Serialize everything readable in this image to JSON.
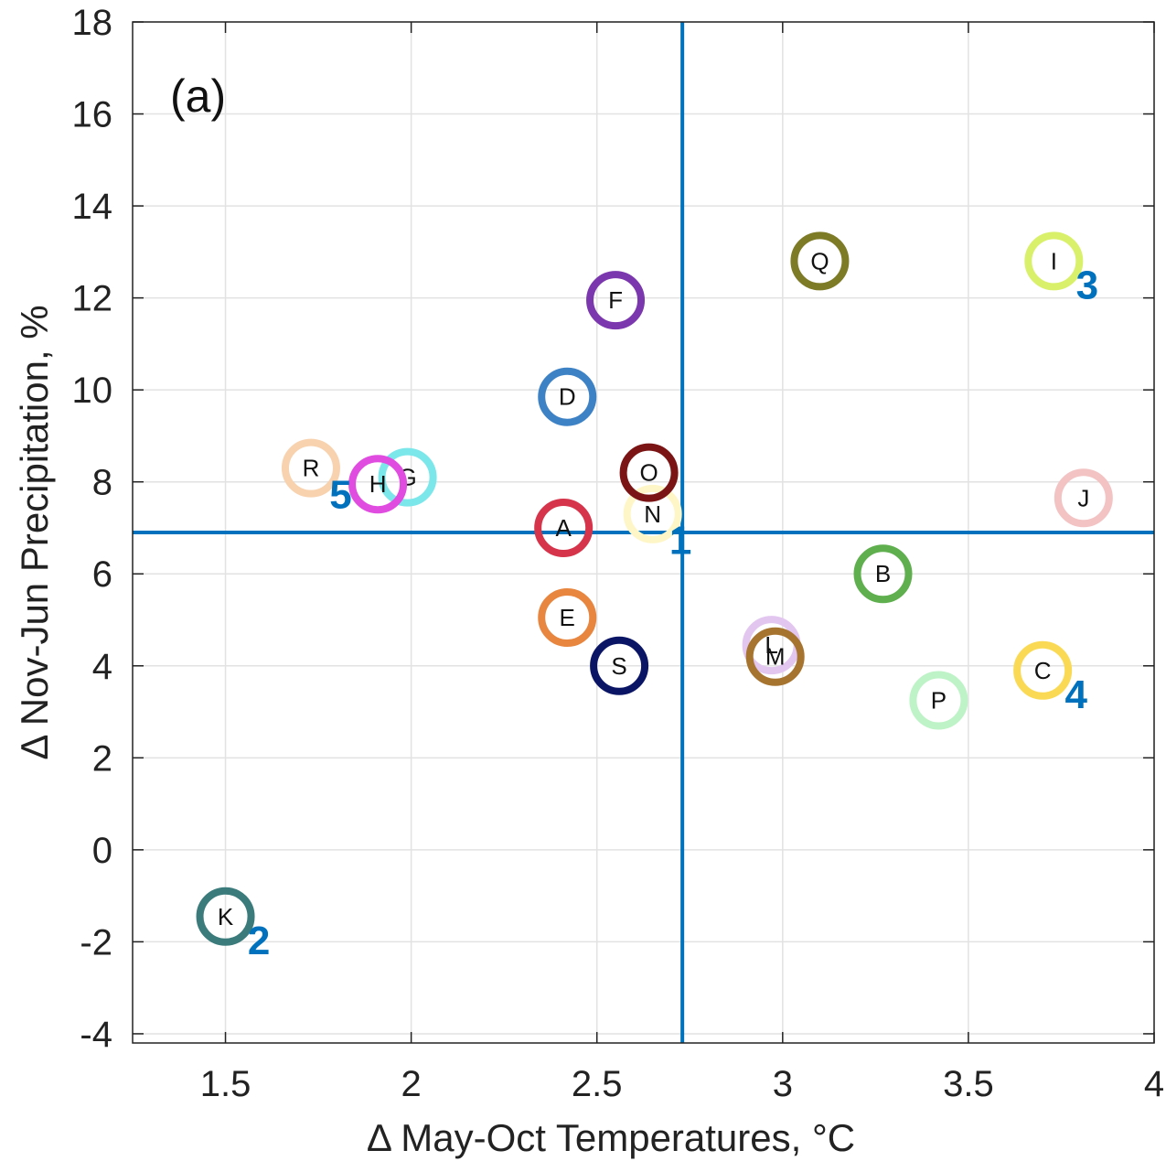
{
  "chart_data": {
    "type": "scatter",
    "panel_label": "(a)",
    "xlabel": "Δ May-Oct Temperatures, °C",
    "ylabel": "Δ Nov-Jun Precipitation, %",
    "xlim": [
      1.25,
      4
    ],
    "ylim": [
      -4.2,
      18
    ],
    "x_ticks": [
      1.5,
      2,
      2.5,
      3,
      3.5,
      4
    ],
    "y_ticks": [
      18,
      16,
      14,
      12,
      10,
      8,
      6,
      4,
      2,
      0,
      -2,
      -4
    ],
    "grid": true,
    "reference_lines": {
      "x": 2.73,
      "y": 6.9,
      "color": "#0072BD"
    },
    "points": [
      {
        "label": "A",
        "x": 2.41,
        "y": 7.0,
        "color": "#D6344A"
      },
      {
        "label": "B",
        "x": 3.27,
        "y": 6.0,
        "color": "#5FAF4E"
      },
      {
        "label": "C",
        "x": 3.7,
        "y": 3.9,
        "color": "#FADA55"
      },
      {
        "label": "D",
        "x": 2.42,
        "y": 9.85,
        "color": "#3E82C6"
      },
      {
        "label": "E",
        "x": 2.42,
        "y": 5.05,
        "color": "#E8853E"
      },
      {
        "label": "F",
        "x": 2.55,
        "y": 11.95,
        "color": "#7B37AE"
      },
      {
        "label": "G",
        "x": 1.99,
        "y": 8.1,
        "color": "#7BE7EA"
      },
      {
        "label": "H",
        "x": 1.91,
        "y": 7.95,
        "color": "#E04CE0"
      },
      {
        "label": "I",
        "x": 3.73,
        "y": 12.8,
        "color": "#D8F06A"
      },
      {
        "label": "J",
        "x": 3.81,
        "y": 7.65,
        "color": "#F3C3C3"
      },
      {
        "label": "K",
        "x": 1.5,
        "y": -1.45,
        "color": "#3B7B7B"
      },
      {
        "label": "L",
        "x": 2.97,
        "y": 4.45,
        "color": "#E3C6F0"
      },
      {
        "label": "M",
        "x": 2.98,
        "y": 4.2,
        "color": "#A6742F"
      },
      {
        "label": "N",
        "x": 2.65,
        "y": 7.3,
        "color": "#FFF6C8"
      },
      {
        "label": "O",
        "x": 2.64,
        "y": 8.2,
        "color": "#7B1515"
      },
      {
        "label": "P",
        "x": 3.42,
        "y": 3.25,
        "color": "#BDF3C6"
      },
      {
        "label": "Q",
        "x": 3.1,
        "y": 12.8,
        "color": "#7E7B27"
      },
      {
        "label": "R",
        "x": 1.73,
        "y": 8.3,
        "color": "#F8D2AE"
      },
      {
        "label": "S",
        "x": 2.56,
        "y": 4.0,
        "color": "#0B1566"
      }
    ],
    "annotations": [
      {
        "text": "1",
        "x": 2.725,
        "y": 6.75,
        "color": "#0072BD"
      },
      {
        "text": "2",
        "x": 1.59,
        "y": -1.95,
        "color": "#0072BD"
      },
      {
        "text": "3",
        "x": 3.82,
        "y": 12.3,
        "color": "#0072BD"
      },
      {
        "text": "4",
        "x": 3.79,
        "y": 3.4,
        "color": "#0072BD"
      },
      {
        "text": "5",
        "x": 1.81,
        "y": 7.75,
        "color": "#0072BD"
      }
    ]
  }
}
